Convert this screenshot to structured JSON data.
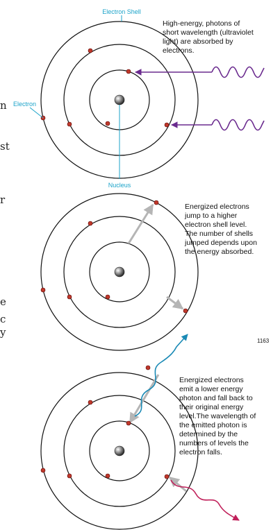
{
  "diagram": {
    "panel1": {
      "label_shell": "Electron Shell",
      "label_electron": "Electron",
      "label_nucleus": "Nucleus",
      "caption_lines": [
        "High-energy, photons of",
        "short wavelength (ultraviolet",
        "light) are absorbed by",
        "electrons."
      ]
    },
    "panel2": {
      "caption_lines": [
        "Energized electrons",
        "jump to a higher",
        "electron shell level.",
        "The number of shells",
        "jumped depends upon",
        "the energy absorbed."
      ]
    },
    "panel3": {
      "caption_lines": [
        "Energized electrons",
        "emit a lower energy",
        "photon and fall back to",
        "their original energy",
        "level.The wavelength of",
        "the emitted photon is",
        "determined by the",
        "numbers of levels the",
        "electron falls."
      ]
    },
    "figure_number": "1163",
    "edge_text": [
      "n",
      "st",
      "r",
      "e",
      "c",
      "y"
    ]
  },
  "colors": {
    "shell_stroke": "#111111",
    "electron_fill": "#c0392b",
    "callout_blue": "#1ba3c9",
    "photon_purple": "#6a2a8e",
    "arrow_gray": "#b5b5b5",
    "emitted_red": "#c0205a",
    "emitted_blue": "#1a8ab5"
  }
}
